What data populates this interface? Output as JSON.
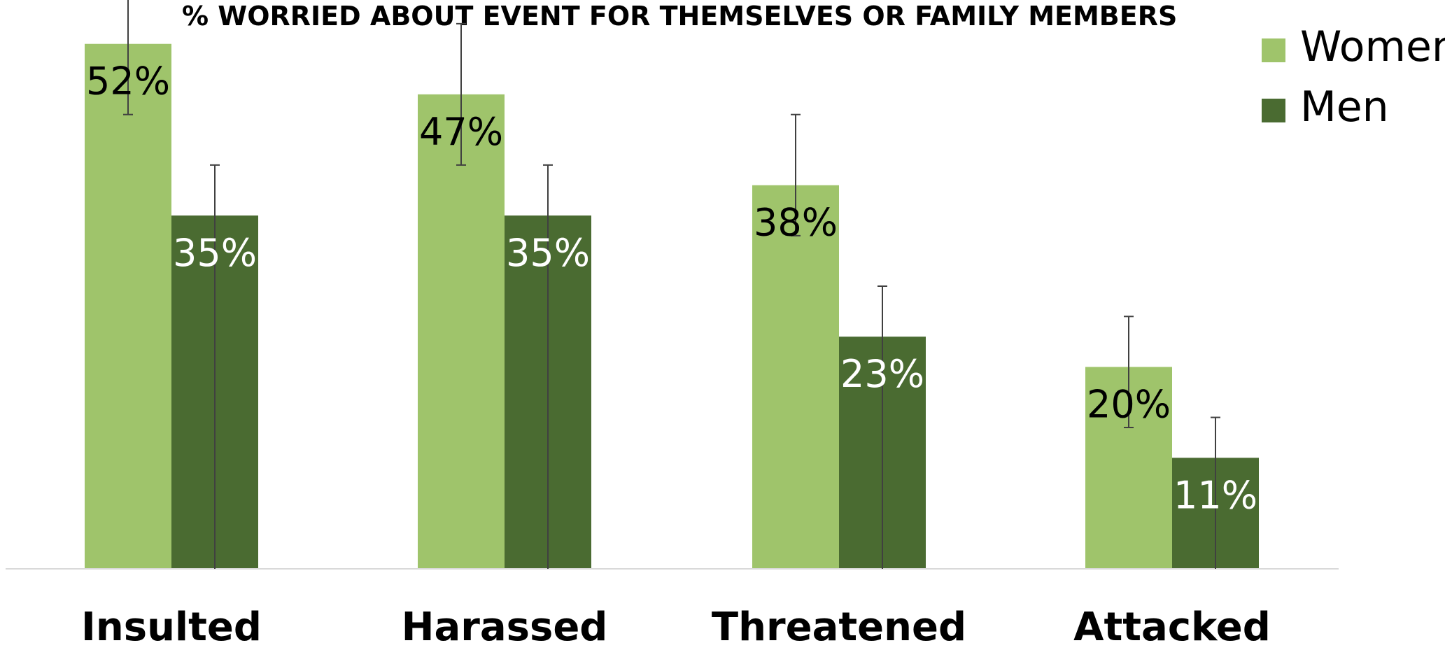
{
  "chart_data": {
    "type": "bar",
    "title": "% WORRIED ABOUT EVENT FOR THEMSELVES OR FAMILY MEMBERS",
    "xlabel": "",
    "ylabel": "",
    "categories": [
      "Insulted",
      "Harassed",
      "Threatened",
      "Attacked"
    ],
    "series": [
      {
        "name": "Women",
        "color": "#9fc46b",
        "label_color": "#000000",
        "values": [
          52,
          47,
          38,
          20
        ],
        "labels": [
          "52%",
          "47%",
          "38%",
          "20%"
        ],
        "error_upper": [
          8,
          7,
          7,
          5
        ],
        "error_lower": [
          7,
          7,
          5,
          6
        ]
      },
      {
        "name": "Men",
        "color": "#4a6b31",
        "label_color": "#ffffff",
        "values": [
          35,
          35,
          23,
          11
        ],
        "labels": [
          "35%",
          "35%",
          "23%",
          "11%"
        ],
        "error_upper": [
          5,
          5,
          5,
          4
        ],
        "error_lower": [
          35,
          35,
          23,
          11
        ]
      }
    ],
    "ylim": [
      0,
      56
    ],
    "grid": false,
    "legend": "top-right"
  }
}
